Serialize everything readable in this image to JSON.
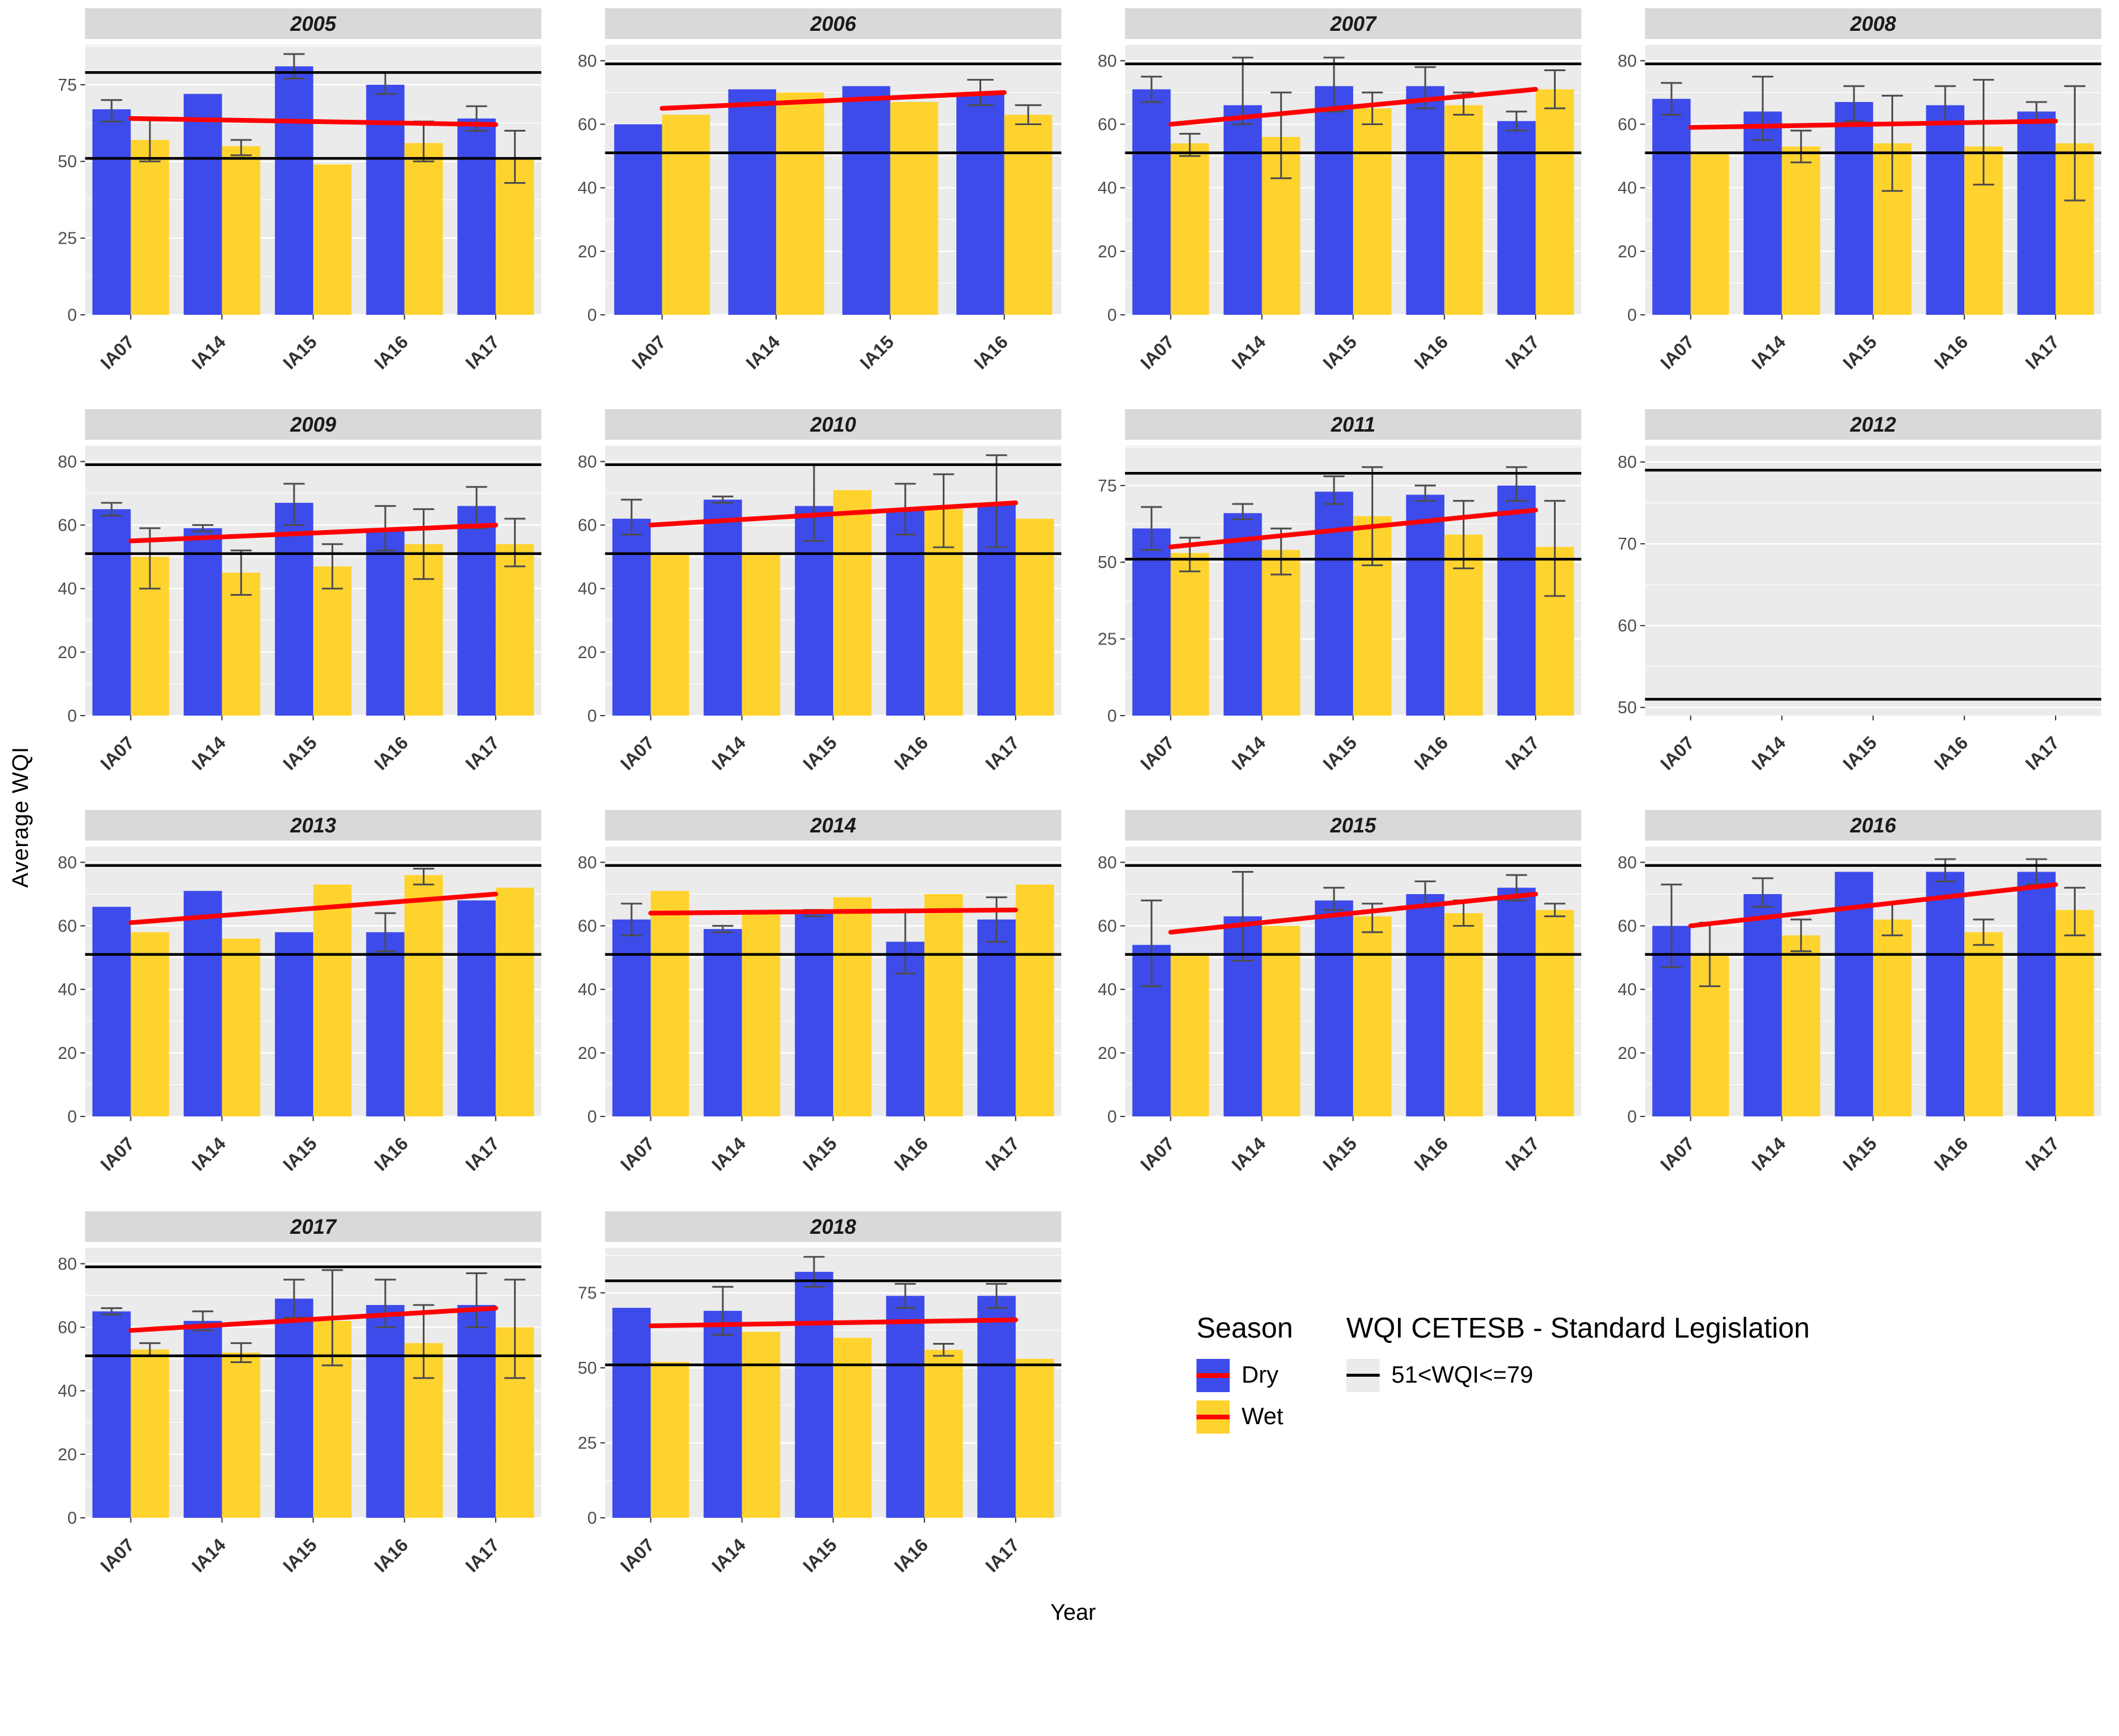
{
  "figure": {
    "ylabel": "Average WQI",
    "xlabel": "Year"
  },
  "legend": {
    "season_title": "Season",
    "dry_label": "Dry",
    "wet_label": "Wet",
    "wqi_title": "WQI CETESB - Standard Legislation",
    "wqi_label": "51<WQI<=79"
  },
  "colors": {
    "dry": "#3D4BEB",
    "wet": "#FFD32E",
    "trend_line": "#FF0000",
    "reference_line": "#000000",
    "panel_bg": "#EBEBEB",
    "strip_bg": "#D9D9D9",
    "errorbar": "#4D4D4D",
    "grid": "#FFFFFF"
  },
  "chart_data": {
    "type": "bar",
    "subtype": "grouped-faceted",
    "title": "",
    "xlabel": "Year",
    "ylabel": "Average WQI",
    "series_names": [
      "Dry",
      "Wet"
    ],
    "reference_lines": [
      51,
      79
    ],
    "reference_label": "51<WQI<=79",
    "trend_line_note": "red linear trend per facet, values give [start,end] WQI at first and last station",
    "facets": [
      {
        "year": "2005",
        "stations": [
          "IA07",
          "IA14",
          "IA15",
          "IA16",
          "IA17"
        ],
        "ylim": [
          0,
          88
        ],
        "yticks": [
          0,
          25,
          50,
          75
        ],
        "dry": [
          67,
          72,
          81,
          75,
          64
        ],
        "dry_err": [
          [
            63,
            70
          ],
          null,
          [
            77,
            85
          ],
          [
            72,
            79
          ],
          [
            60,
            68
          ]
        ],
        "wet": [
          57,
          55,
          49,
          56,
          51
        ],
        "wet_err": [
          [
            50,
            64
          ],
          [
            52,
            57
          ],
          null,
          [
            50,
            63
          ],
          [
            43,
            60
          ]
        ],
        "trend": [
          64,
          62
        ]
      },
      {
        "year": "2006",
        "stations": [
          "IA07",
          "IA14",
          "IA15",
          "IA16"
        ],
        "ylim": [
          0,
          85
        ],
        "yticks": [
          0,
          20,
          40,
          60,
          80
        ],
        "dry": [
          60,
          71,
          72,
          70
        ],
        "dry_err": [
          null,
          null,
          null,
          [
            66,
            74
          ]
        ],
        "wet": [
          63,
          70,
          67,
          63
        ],
        "wet_err": [
          null,
          null,
          null,
          [
            60,
            66
          ]
        ],
        "trend": [
          65,
          70
        ]
      },
      {
        "year": "2007",
        "stations": [
          "IA07",
          "IA14",
          "IA15",
          "IA16",
          "IA17"
        ],
        "ylim": [
          0,
          85
        ],
        "yticks": [
          0,
          20,
          40,
          60,
          80
        ],
        "dry": [
          71,
          66,
          72,
          72,
          61
        ],
        "dry_err": [
          [
            67,
            75
          ],
          [
            60,
            81
          ],
          [
            64,
            81
          ],
          [
            65,
            78
          ],
          [
            58,
            64
          ]
        ],
        "wet": [
          54,
          56,
          65,
          66,
          71
        ],
        "wet_err": [
          [
            50,
            57
          ],
          [
            43,
            70
          ],
          [
            60,
            70
          ],
          [
            63,
            70
          ],
          [
            65,
            77
          ]
        ],
        "trend": [
          60,
          71
        ]
      },
      {
        "year": "2008",
        "stations": [
          "IA07",
          "IA14",
          "IA15",
          "IA16",
          "IA17"
        ],
        "ylim": [
          0,
          85
        ],
        "yticks": [
          0,
          20,
          40,
          60,
          80
        ],
        "dry": [
          68,
          64,
          67,
          66,
          64
        ],
        "dry_err": [
          [
            63,
            73
          ],
          [
            55,
            75
          ],
          [
            61,
            72
          ],
          [
            60,
            72
          ],
          [
            61,
            67
          ]
        ],
        "wet": [
          51,
          53,
          54,
          53,
          54
        ],
        "wet_err": [
          null,
          [
            48,
            58
          ],
          [
            39,
            69
          ],
          [
            41,
            74
          ],
          [
            36,
            72
          ]
        ],
        "trend": [
          59,
          61
        ]
      },
      {
        "year": "2009",
        "stations": [
          "IA07",
          "IA14",
          "IA15",
          "IA16",
          "IA17"
        ],
        "ylim": [
          0,
          85
        ],
        "yticks": [
          0,
          20,
          40,
          60,
          80
        ],
        "dry": [
          65,
          59,
          67,
          59,
          66
        ],
        "dry_err": [
          [
            63,
            67
          ],
          [
            58,
            60
          ],
          [
            60,
            73
          ],
          [
            52,
            66
          ],
          [
            59,
            72
          ]
        ],
        "wet": [
          50,
          45,
          47,
          54,
          54
        ],
        "wet_err": [
          [
            40,
            59
          ],
          [
            38,
            52
          ],
          [
            40,
            54
          ],
          [
            43,
            65
          ],
          [
            47,
            62
          ]
        ],
        "trend": [
          55,
          60
        ]
      },
      {
        "year": "2010",
        "stations": [
          "IA07",
          "IA14",
          "IA15",
          "IA16",
          "IA17"
        ],
        "ylim": [
          0,
          85
        ],
        "yticks": [
          0,
          20,
          40,
          60,
          80
        ],
        "dry": [
          62,
          68,
          66,
          65,
          67
        ],
        "dry_err": [
          [
            57,
            68
          ],
          [
            67,
            69
          ],
          [
            55,
            79
          ],
          [
            57,
            73
          ],
          [
            53,
            82
          ]
        ],
        "wet": [
          51,
          51,
          71,
          65,
          62
        ],
        "wet_err": [
          null,
          null,
          null,
          [
            53,
            76
          ],
          null
        ],
        "trend": [
          60,
          67
        ]
      },
      {
        "year": "2011",
        "stations": [
          "IA07",
          "IA14",
          "IA15",
          "IA16",
          "IA17"
        ],
        "ylim": [
          0,
          88
        ],
        "yticks": [
          0,
          25,
          50,
          75
        ],
        "dry": [
          61,
          66,
          73,
          72,
          75
        ],
        "dry_err": [
          [
            54,
            68
          ],
          [
            64,
            69
          ],
          [
            69,
            78
          ],
          [
            70,
            75
          ],
          [
            70,
            81
          ]
        ],
        "wet": [
          53,
          54,
          65,
          59,
          55
        ],
        "wet_err": [
          [
            47,
            58
          ],
          [
            46,
            61
          ],
          [
            49,
            81
          ],
          [
            48,
            70
          ],
          [
            39,
            70
          ]
        ],
        "trend": [
          55,
          67
        ]
      },
      {
        "year": "2012",
        "stations": [
          "IA07",
          "IA14",
          "IA15",
          "IA16",
          "IA17"
        ],
        "ylim": [
          49,
          82
        ],
        "yticks": [
          50,
          60,
          70,
          80
        ],
        "dry": [
          null,
          null,
          null,
          null,
          null
        ],
        "dry_err": [
          null,
          null,
          null,
          null,
          null
        ],
        "wet": [
          null,
          null,
          null,
          null,
          null
        ],
        "wet_err": [
          null,
          null,
          null,
          null,
          null
        ],
        "trend": null
      },
      {
        "year": "2013",
        "stations": [
          "IA07",
          "IA14",
          "IA15",
          "IA16",
          "IA17"
        ],
        "ylim": [
          0,
          85
        ],
        "yticks": [
          0,
          20,
          40,
          60,
          80
        ],
        "dry": [
          66,
          71,
          58,
          58,
          68
        ],
        "dry_err": [
          null,
          null,
          null,
          [
            52,
            64
          ],
          null
        ],
        "wet": [
          58,
          56,
          73,
          76,
          72
        ],
        "wet_err": [
          null,
          null,
          null,
          [
            73,
            78
          ],
          null
        ],
        "trend": [
          61,
          70
        ]
      },
      {
        "year": "2014",
        "stations": [
          "IA07",
          "IA14",
          "IA15",
          "IA16",
          "IA17"
        ],
        "ylim": [
          0,
          85
        ],
        "yticks": [
          0,
          20,
          40,
          60,
          80
        ],
        "dry": [
          62,
          59,
          64,
          55,
          62
        ],
        "dry_err": [
          [
            57,
            67
          ],
          [
            58,
            60
          ],
          [
            63,
            65
          ],
          [
            45,
            65
          ],
          [
            55,
            69
          ]
        ],
        "wet": [
          71,
          64,
          69,
          70,
          73
        ],
        "wet_err": [
          null,
          null,
          null,
          null,
          null
        ],
        "trend": [
          64,
          65
        ]
      },
      {
        "year": "2015",
        "stations": [
          "IA07",
          "IA14",
          "IA15",
          "IA16",
          "IA17"
        ],
        "ylim": [
          0,
          85
        ],
        "yticks": [
          0,
          20,
          40,
          60,
          80
        ],
        "dry": [
          54,
          63,
          68,
          70,
          72
        ],
        "dry_err": [
          [
            41,
            68
          ],
          [
            49,
            77
          ],
          [
            65,
            72
          ],
          [
            66,
            74
          ],
          [
            68,
            76
          ]
        ],
        "wet": [
          51,
          60,
          63,
          64,
          65
        ],
        "wet_err": [
          null,
          null,
          [
            58,
            67
          ],
          [
            60,
            68
          ],
          [
            63,
            67
          ]
        ],
        "trend": [
          58,
          70
        ]
      },
      {
        "year": "2016",
        "stations": [
          "IA07",
          "IA14",
          "IA15",
          "IA16",
          "IA17"
        ],
        "ylim": [
          0,
          85
        ],
        "yticks": [
          0,
          20,
          40,
          60,
          80
        ],
        "dry": [
          60,
          70,
          77,
          77,
          77
        ],
        "dry_err": [
          [
            47,
            73
          ],
          [
            66,
            75
          ],
          null,
          [
            74,
            81
          ],
          [
            73,
            81
          ]
        ],
        "wet": [
          51,
          57,
          62,
          58,
          65
        ],
        "wet_err": [
          [
            41,
            61
          ],
          [
            52,
            62
          ],
          [
            57,
            67
          ],
          [
            54,
            62
          ],
          [
            57,
            72
          ]
        ],
        "trend": [
          60,
          73
        ]
      },
      {
        "year": "2017",
        "stations": [
          "IA07",
          "IA14",
          "IA15",
          "IA16",
          "IA17"
        ],
        "ylim": [
          0,
          85
        ],
        "yticks": [
          0,
          20,
          40,
          60,
          80
        ],
        "dry": [
          65,
          62,
          69,
          67,
          67
        ],
        "dry_err": [
          [
            64,
            66
          ],
          [
            59,
            65
          ],
          [
            63,
            75
          ],
          [
            60,
            75
          ],
          [
            60,
            77
          ]
        ],
        "wet": [
          53,
          52,
          62,
          55,
          60
        ],
        "wet_err": [
          [
            51,
            55
          ],
          [
            49,
            55
          ],
          [
            48,
            78
          ],
          [
            44,
            67
          ],
          [
            44,
            75
          ]
        ],
        "trend": [
          59,
          66
        ]
      },
      {
        "year": "2018",
        "stations": [
          "IA07",
          "IA14",
          "IA15",
          "IA16",
          "IA17"
        ],
        "ylim": [
          0,
          90
        ],
        "yticks": [
          0,
          25,
          50,
          75
        ],
        "dry": [
          70,
          69,
          82,
          74,
          74
        ],
        "dry_err": [
          null,
          [
            61,
            77
          ],
          [
            77,
            87
          ],
          [
            70,
            78
          ],
          [
            70,
            78
          ]
        ],
        "wet": [
          52,
          62,
          60,
          56,
          53
        ],
        "wet_err": [
          null,
          null,
          null,
          [
            54,
            58
          ],
          null
        ],
        "trend": [
          64,
          66
        ]
      }
    ]
  }
}
